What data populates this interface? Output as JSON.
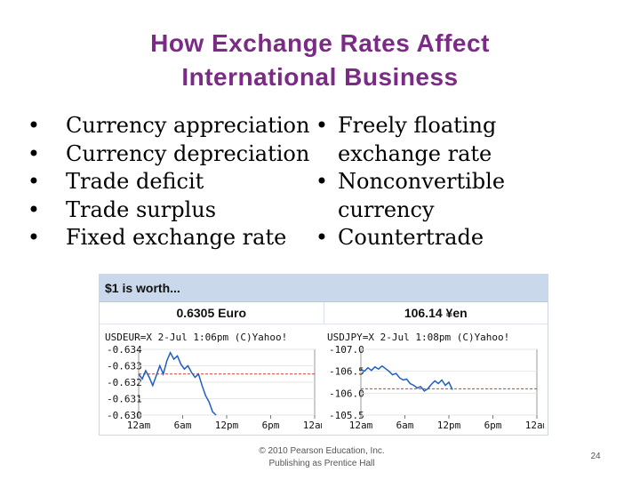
{
  "slide": {
    "title_line1": "How Exchange Rates Affect",
    "title_line2": "International Business",
    "left_bullets": [
      "Currency appreciation",
      "Currency depreciation",
      "Trade deficit",
      "Trade surplus",
      "Fixed exchange rate"
    ],
    "right_bullets": [
      [
        "Freely floating",
        "exchange rate"
      ],
      [
        "Nonconvertible",
        "currency"
      ],
      [
        "Countertrade"
      ]
    ],
    "bullet_char": "•",
    "footer_line1": "© 2010 Pearson Education, Inc.",
    "footer_line2": "Publishing as Prentice Hall",
    "page_number": "24"
  },
  "colors": {
    "title": "#7b2a86",
    "widget_header_bg": "#c9d8ea",
    "chart_line": "#1f5fbf",
    "reference_line": "#d23c2c"
  },
  "widget": {
    "header": "$1 is worth...",
    "usd_eur_rate": "0.6305 Euro",
    "usd_jpy_rate": "106.14 ¥en"
  },
  "charts": [
    {
      "id": "usdeur",
      "label": "USDEUR=X 2-Jul 1:06pm (C)Yahoo!",
      "y_ticks": [
        "0.634",
        "0.633",
        "0.632",
        "0.631",
        "0.630"
      ],
      "y_min": 0.63,
      "y_max": 0.634,
      "x_ticks": [
        "12am",
        "6am",
        "12pm",
        "6pm",
        "12am"
      ],
      "reference_value": 0.6325,
      "series": [
        [
          0.0,
          0.6325
        ],
        [
          0.02,
          0.6322
        ],
        [
          0.04,
          0.6327
        ],
        [
          0.06,
          0.6323
        ],
        [
          0.08,
          0.6318
        ],
        [
          0.1,
          0.6324
        ],
        [
          0.12,
          0.633
        ],
        [
          0.14,
          0.6325
        ],
        [
          0.16,
          0.6333
        ],
        [
          0.18,
          0.6338
        ],
        [
          0.2,
          0.6334
        ],
        [
          0.22,
          0.6336
        ],
        [
          0.24,
          0.6331
        ],
        [
          0.26,
          0.6328
        ],
        [
          0.28,
          0.633
        ],
        [
          0.3,
          0.6326
        ],
        [
          0.32,
          0.6323
        ],
        [
          0.34,
          0.6325
        ],
        [
          0.36,
          0.6318
        ],
        [
          0.38,
          0.6312
        ],
        [
          0.4,
          0.6308
        ],
        [
          0.42,
          0.6302
        ],
        [
          0.44,
          0.63
        ]
      ]
    },
    {
      "id": "usdjpy",
      "label": "USDJPY=X 2-Jul 1:08pm (C)Yahoo!",
      "y_ticks": [
        "107.0",
        "106.5",
        "106.0",
        "105.5"
      ],
      "y_min": 105.5,
      "y_max": 107.0,
      "x_ticks": [
        "12am",
        "6am",
        "12pm",
        "6pm",
        "12am"
      ],
      "reference_value": 106.1,
      "series": [
        [
          0.0,
          106.55
        ],
        [
          0.02,
          106.5
        ],
        [
          0.04,
          106.58
        ],
        [
          0.06,
          106.52
        ],
        [
          0.08,
          106.6
        ],
        [
          0.1,
          106.55
        ],
        [
          0.12,
          106.62
        ],
        [
          0.14,
          106.56
        ],
        [
          0.16,
          106.5
        ],
        [
          0.18,
          106.42
        ],
        [
          0.2,
          106.45
        ],
        [
          0.22,
          106.35
        ],
        [
          0.24,
          106.3
        ],
        [
          0.26,
          106.32
        ],
        [
          0.28,
          106.22
        ],
        [
          0.3,
          106.18
        ],
        [
          0.32,
          106.12
        ],
        [
          0.34,
          106.15
        ],
        [
          0.36,
          106.05
        ],
        [
          0.38,
          106.1
        ],
        [
          0.4,
          106.2
        ],
        [
          0.42,
          106.28
        ],
        [
          0.44,
          106.22
        ],
        [
          0.46,
          106.3
        ],
        [
          0.48,
          106.18
        ],
        [
          0.5,
          106.25
        ],
        [
          0.52,
          106.08
        ]
      ]
    }
  ]
}
